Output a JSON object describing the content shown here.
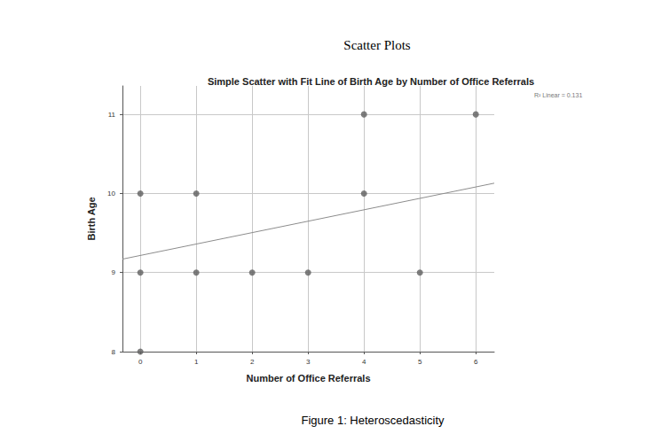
{
  "heading": "Scatter Plots",
  "caption": "Figure 1: Heteroscedasticity",
  "chart_data": {
    "type": "scatter",
    "title": "Simple Scatter with Fit Line of Birth Age by Number of Office Referrals",
    "x_label": "Number of Office Referrals",
    "y_label": "Birth Age",
    "annotations": [
      "R² Linear = 0.131"
    ],
    "x": [
      0,
      0,
      0,
      1,
      1,
      2,
      3,
      4,
      4,
      5,
      6
    ],
    "values": [
      10,
      9,
      8,
      10,
      9,
      9,
      9,
      11,
      10,
      9,
      11
    ],
    "color": "#5f5f5f",
    "marker": "circle",
    "fit_line": {
      "x": [
        -0.32,
        6.33
      ],
      "values": [
        9.17,
        10.13
      ],
      "color": "#8c8c8c",
      "line_style": "solid"
    },
    "xlim": [
      -0.32,
      6.33
    ],
    "xticks": [
      0,
      1,
      2,
      3,
      4,
      5,
      6
    ],
    "ylim": [
      8,
      11.36
    ],
    "yticks": [
      8,
      9,
      10,
      11
    ],
    "grid": true
  }
}
